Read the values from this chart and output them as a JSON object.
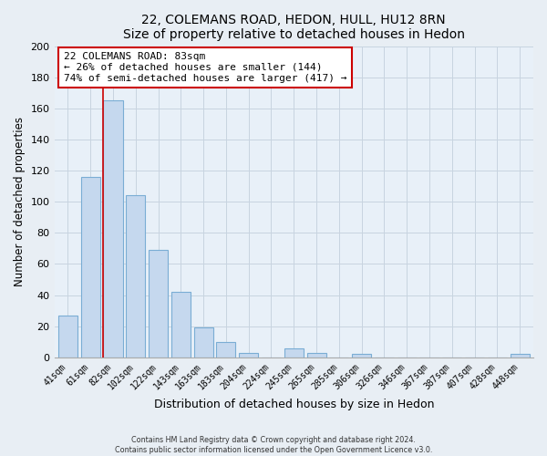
{
  "title": "22, COLEMANS ROAD, HEDON, HULL, HU12 8RN",
  "subtitle": "Size of property relative to detached houses in Hedon",
  "xlabel": "Distribution of detached houses by size in Hedon",
  "ylabel": "Number of detached properties",
  "bar_labels": [
    "41sqm",
    "61sqm",
    "82sqm",
    "102sqm",
    "122sqm",
    "143sqm",
    "163sqm",
    "183sqm",
    "204sqm",
    "224sqm",
    "245sqm",
    "265sqm",
    "285sqm",
    "306sqm",
    "326sqm",
    "346sqm",
    "367sqm",
    "387sqm",
    "407sqm",
    "428sqm",
    "448sqm"
  ],
  "bar_values": [
    27,
    116,
    165,
    104,
    69,
    42,
    19,
    10,
    3,
    0,
    6,
    3,
    0,
    2,
    0,
    0,
    0,
    0,
    0,
    0,
    2
  ],
  "bar_color": "#c5d8ee",
  "bar_edge_color": "#7aadd4",
  "highlight_line_color": "#cc0000",
  "ylim": [
    0,
    200
  ],
  "yticks": [
    0,
    20,
    40,
    60,
    80,
    100,
    120,
    140,
    160,
    180,
    200
  ],
  "annotation_text": "22 COLEMANS ROAD: 83sqm\n← 26% of detached houses are smaller (144)\n74% of semi-detached houses are larger (417) →",
  "annotation_box_color": "#ffffff",
  "annotation_box_edge": "#cc0000",
  "footer_line1": "Contains HM Land Registry data © Crown copyright and database right 2024.",
  "footer_line2": "Contains public sector information licensed under the Open Government Licence v3.0.",
  "background_color": "#e8eef4",
  "plot_background": "#e8f0f8",
  "grid_color": "#c8d4e0"
}
